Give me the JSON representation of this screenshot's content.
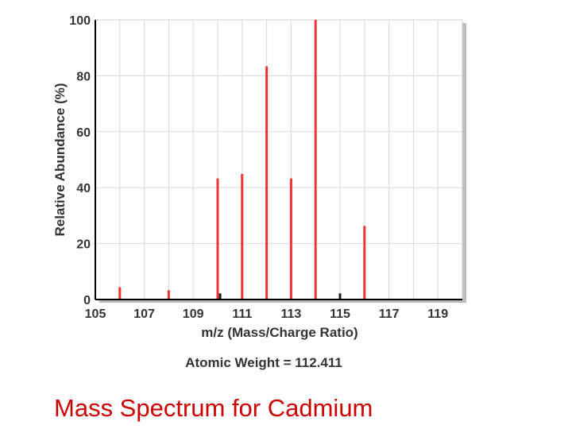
{
  "chart_data": {
    "type": "bar",
    "ylabel": "Relative Abundance (%)",
    "xlabel": "m/z (Mass/Charge Ratio)",
    "xlim": [
      105,
      120
    ],
    "ylim": [
      0,
      100
    ],
    "x_ticks": [
      105,
      107,
      109,
      111,
      113,
      115,
      117,
      119
    ],
    "y_ticks": [
      0,
      20,
      40,
      60,
      80,
      100
    ],
    "grid": true,
    "series": [
      {
        "color": "#ee3333",
        "points": [
          {
            "x": 106,
            "y": 4.4
          },
          {
            "x": 108,
            "y": 3.3
          },
          {
            "x": 110,
            "y": 43.3
          },
          {
            "x": 111,
            "y": 44.9
          },
          {
            "x": 112,
            "y": 83.4
          },
          {
            "x": 113,
            "y": 43.3
          },
          {
            "x": 114,
            "y": 100
          },
          {
            "x": 116,
            "y": 26.3
          }
        ]
      },
      {
        "color": "#222222",
        "points": [
          {
            "x": 110.1,
            "y": 2.2
          },
          {
            "x": 115,
            "y": 2.2
          }
        ]
      }
    ],
    "annotation": "Atomic Weight = 112.411"
  },
  "caption": "Mass Spectrum for Cadmium"
}
